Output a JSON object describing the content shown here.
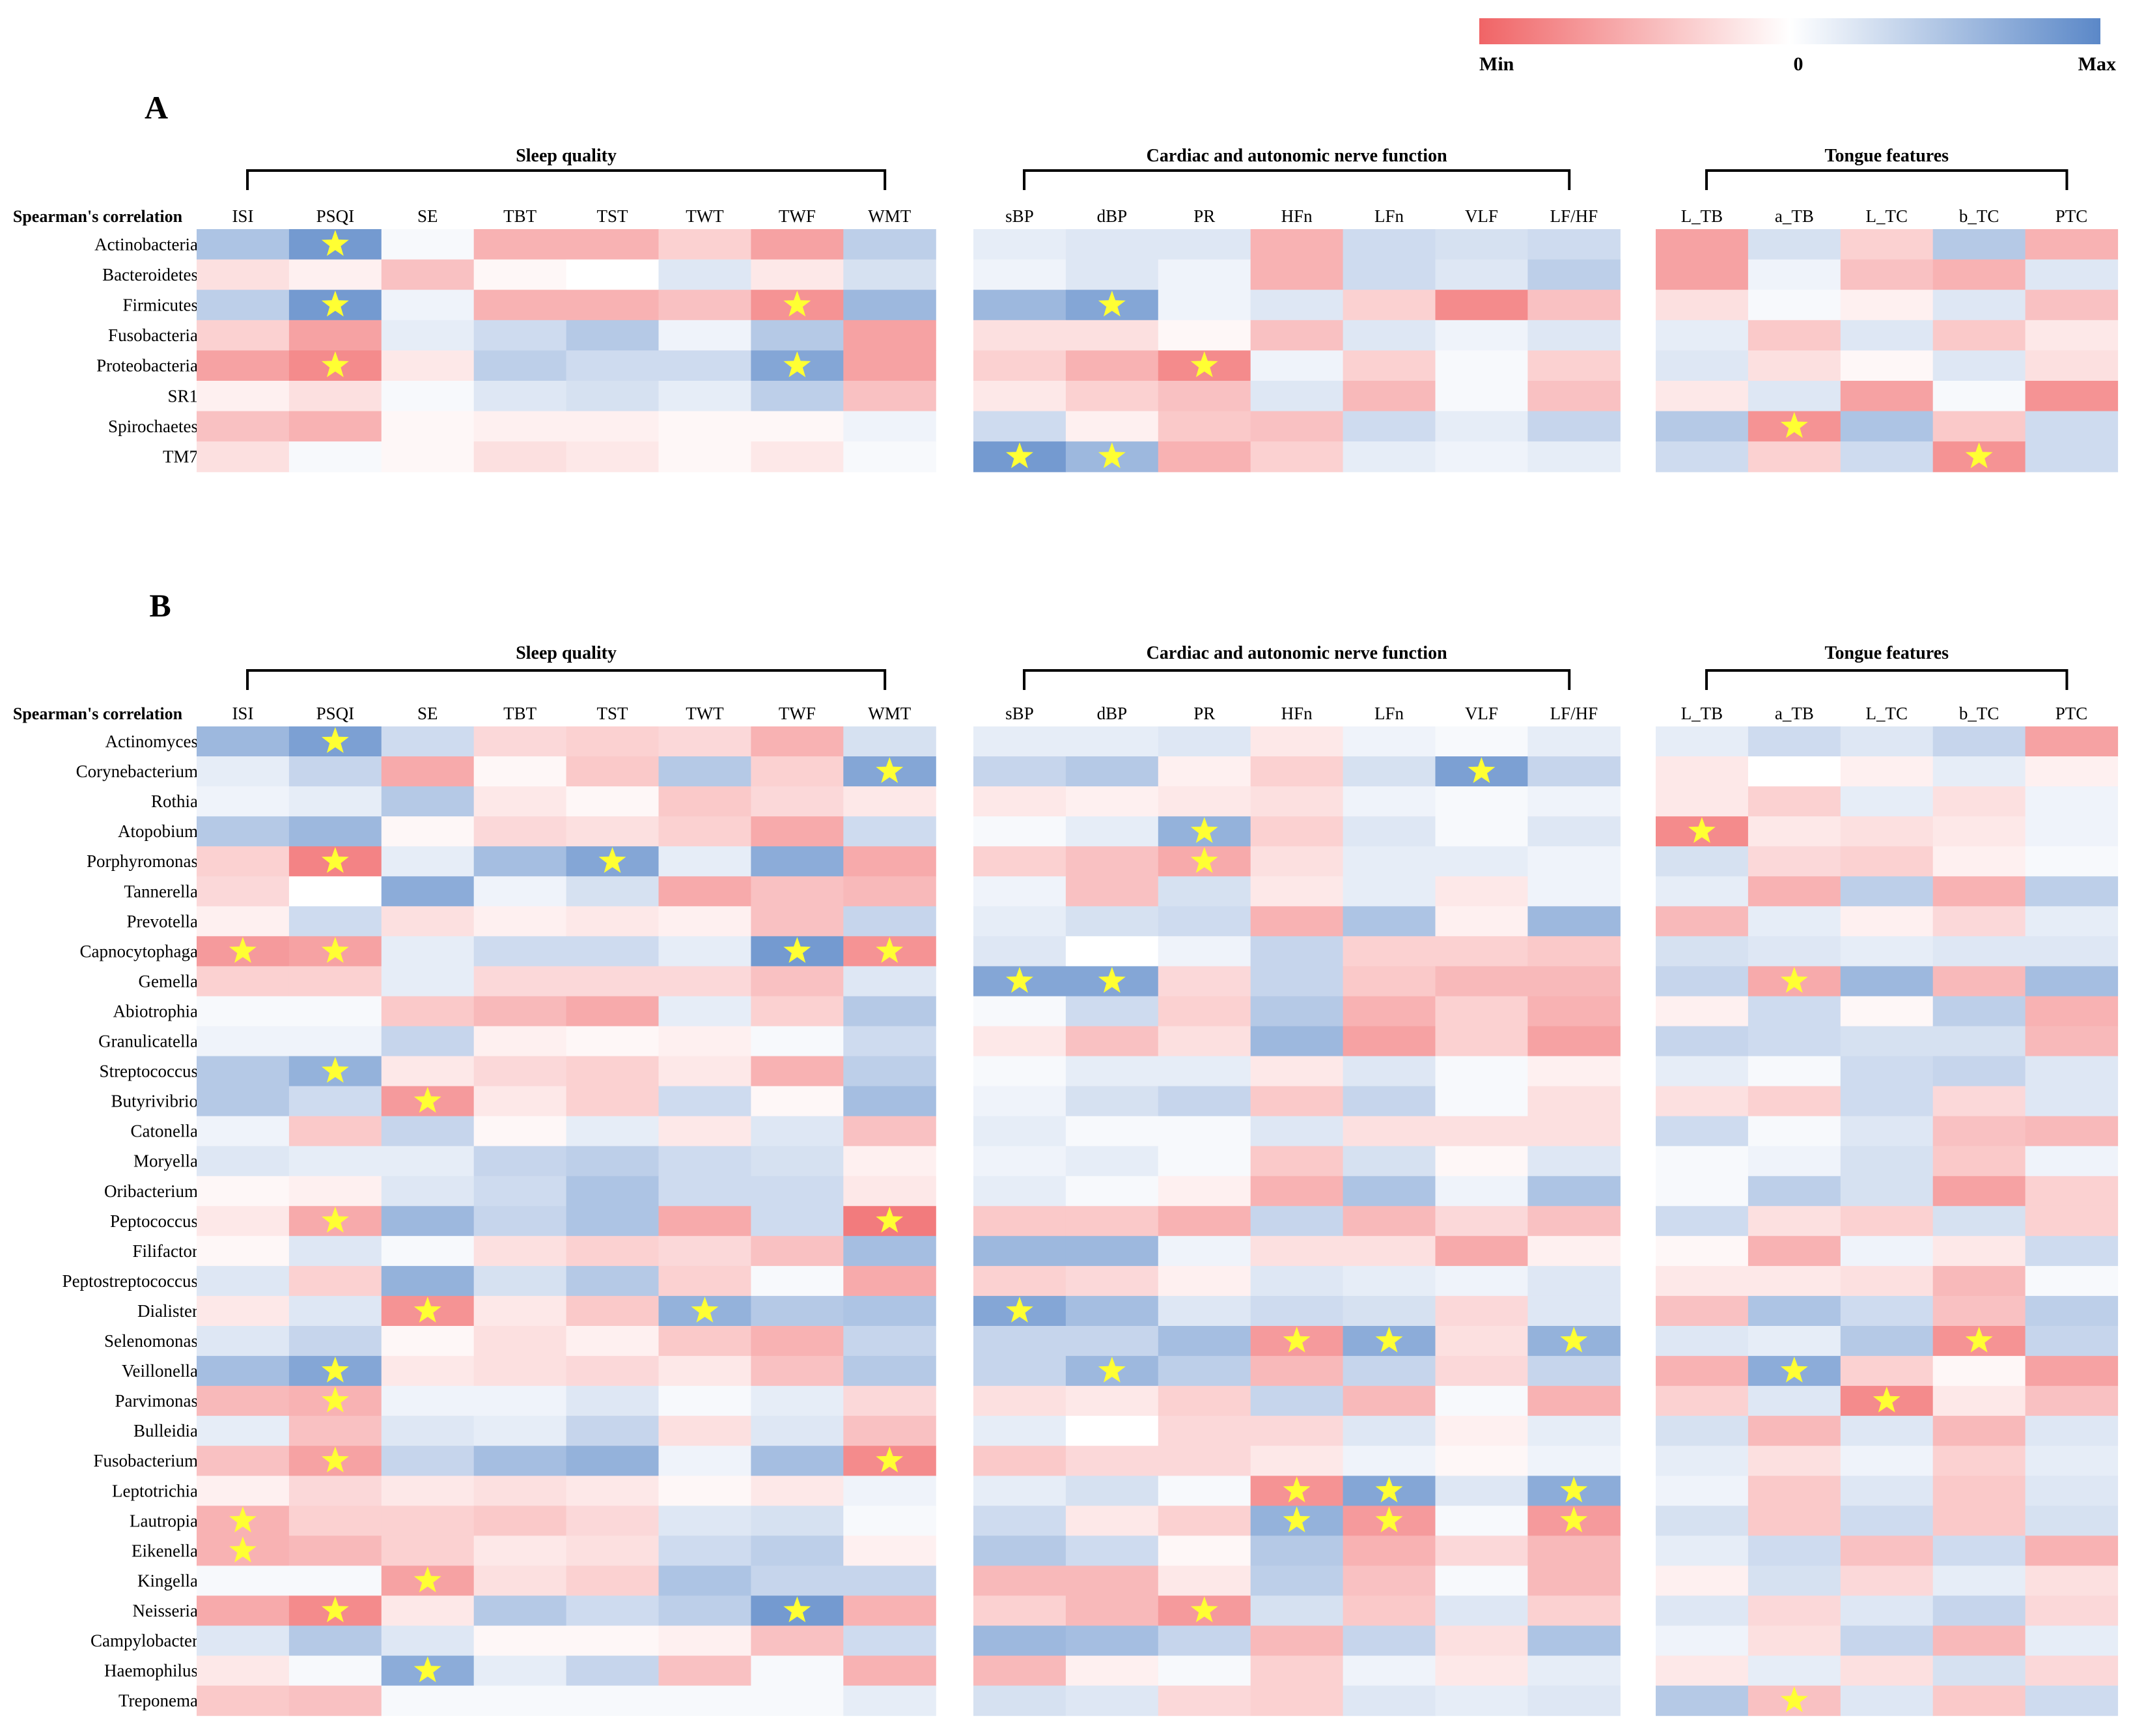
{
  "colors": {
    "min": "#f06466",
    "zero": "#ffffff",
    "max": "#5b88c8",
    "star": "#ffff33",
    "bracket": "#000000"
  },
  "legend": {
    "min_label": "Min",
    "zero_label": "0",
    "max_label": "Max"
  },
  "chart_data": [
    {
      "type": "heatmap",
      "panel_label": "A",
      "row_header": "Spearman's correlation",
      "value_scale": "relative, -1 = Min (red), 0 = white, 1 = Max (blue)",
      "groups": [
        {
          "name": "Sleep quality",
          "columns": [
            "ISI",
            "PSQI",
            "SE",
            "TBT",
            "TST",
            "TWT",
            "TWF",
            "WMT"
          ]
        },
        {
          "name": "Cardiac and autonomic nerve function",
          "columns": [
            "sBP",
            "dBP",
            "PR",
            "HFn",
            "LFn",
            "VLF",
            "LF/HF"
          ]
        },
        {
          "name": "Tongue features",
          "columns": [
            "L_TB",
            "a_TB",
            "L_TC",
            "b_TC",
            "PTC"
          ]
        }
      ],
      "rows": [
        "Actinobacteria",
        "Bacteroidetes",
        "Firmicutes",
        "Fusobacteria",
        "Proteobacteria",
        "SR1",
        "Spirochaetes",
        "TM7"
      ],
      "values": [
        [
          0.5,
          0.85,
          0.05,
          -0.5,
          -0.5,
          -0.3,
          -0.6,
          0.4,
          0.15,
          0.2,
          0.2,
          -0.5,
          0.3,
          0.25,
          0.3,
          -0.6,
          0.25,
          -0.3,
          0.45,
          -0.5
        ],
        [
          -0.2,
          -0.1,
          -0.4,
          -0.05,
          0.0,
          0.2,
          -0.15,
          0.25,
          0.1,
          0.2,
          0.1,
          -0.5,
          0.3,
          0.2,
          0.4,
          -0.6,
          0.1,
          -0.4,
          -0.5,
          0.2
        ],
        [
          0.4,
          0.85,
          0.1,
          -0.5,
          -0.5,
          -0.4,
          -0.7,
          0.6,
          0.6,
          0.75,
          0.1,
          0.2,
          -0.3,
          -0.75,
          -0.4,
          -0.2,
          0.05,
          -0.1,
          0.2,
          -0.4
        ],
        [
          -0.3,
          -0.6,
          0.15,
          0.3,
          0.45,
          0.1,
          0.45,
          -0.6,
          -0.2,
          -0.2,
          -0.05,
          -0.4,
          0.2,
          0.1,
          0.2,
          0.15,
          -0.35,
          0.2,
          -0.35,
          -0.15
        ],
        [
          -0.6,
          -0.75,
          -0.15,
          0.4,
          0.3,
          0.3,
          0.75,
          -0.6,
          -0.3,
          -0.5,
          -0.75,
          0.1,
          -0.3,
          0.05,
          -0.3,
          0.2,
          -0.2,
          -0.05,
          0.2,
          -0.2
        ],
        [
          -0.1,
          -0.2,
          0.05,
          0.2,
          0.25,
          0.15,
          0.4,
          -0.4,
          -0.15,
          -0.3,
          -0.4,
          0.2,
          -0.45,
          0.05,
          -0.4,
          -0.15,
          0.2,
          -0.6,
          0.05,
          -0.7
        ],
        [
          -0.4,
          -0.5,
          -0.05,
          -0.1,
          -0.1,
          -0.05,
          -0.05,
          0.1,
          0.3,
          -0.1,
          -0.35,
          -0.4,
          0.3,
          0.15,
          0.35,
          0.45,
          -0.7,
          0.5,
          -0.35,
          0.3
        ],
        [
          -0.2,
          0.05,
          -0.05,
          -0.2,
          -0.15,
          -0.05,
          -0.15,
          0.05,
          0.85,
          0.6,
          -0.5,
          -0.3,
          0.15,
          0.1,
          0.15,
          0.3,
          -0.3,
          0.3,
          -0.7,
          0.3
        ]
      ],
      "significant": [
        [
          0,
          1
        ],
        [
          2,
          1
        ],
        [
          2,
          6
        ],
        [
          4,
          1
        ],
        [
          4,
          6
        ],
        [
          2,
          9
        ],
        [
          4,
          10
        ],
        [
          7,
          8
        ],
        [
          7,
          9
        ],
        [
          6,
          16
        ],
        [
          7,
          18
        ]
      ]
    },
    {
      "type": "heatmap",
      "panel_label": "B",
      "row_header": "Spearman's correlation",
      "value_scale": "relative, -1 = Min (red), 0 = white, 1 = Max (blue)",
      "groups": [
        {
          "name": "Sleep quality",
          "columns": [
            "ISI",
            "PSQI",
            "SE",
            "TBT",
            "TST",
            "TWT",
            "TWF",
            "WMT"
          ]
        },
        {
          "name": "Cardiac and autonomic nerve function",
          "columns": [
            "sBP",
            "dBP",
            "PR",
            "HFn",
            "LFn",
            "VLF",
            "LF/HF"
          ]
        },
        {
          "name": "Tongue features",
          "columns": [
            "L_TB",
            "a_TB",
            "L_TC",
            "b_TC",
            "PTC"
          ]
        }
      ],
      "rows": [
        "Actinomyces",
        "Corynebacterium",
        "Rothia",
        "Atopobium",
        "Porphyromonas",
        "Tannerella",
        "Prevotella",
        "Capnocytophaga",
        "Gemella",
        "Abiotrophia",
        "Granulicatella",
        "Streptococcus",
        "Butyrivibrio",
        "Catonella",
        "Moryella",
        "Oribacterium",
        "Peptococcus",
        "Filifactor",
        "Peptostreptococcus",
        "Dialister",
        "Selenomonas",
        "Veillonella",
        "Parvimonas",
        "Bulleidia",
        "Fusobacterium",
        "Leptotrichia",
        "Lautropia",
        "Eikenella",
        "Kingella",
        "Neisseria",
        "Campylobacter",
        "Haemophilus",
        "Treponema"
      ],
      "values": [
        [
          0.6,
          0.8,
          0.3,
          -0.25,
          -0.3,
          -0.25,
          -0.5,
          0.25,
          0.15,
          0.15,
          0.2,
          -0.15,
          0.1,
          0.05,
          0.15,
          0.15,
          0.3,
          0.2,
          0.35,
          -0.6
        ],
        [
          0.15,
          0.35,
          -0.55,
          -0.05,
          -0.35,
          0.45,
          -0.3,
          0.75,
          0.35,
          0.45,
          -0.1,
          -0.3,
          0.25,
          0.8,
          0.35,
          -0.15,
          0.0,
          -0.1,
          0.15,
          -0.1
        ],
        [
          0.1,
          0.15,
          0.45,
          -0.15,
          -0.05,
          -0.35,
          -0.25,
          -0.15,
          -0.15,
          -0.1,
          -0.15,
          -0.2,
          0.1,
          0.05,
          0.1,
          -0.15,
          -0.3,
          0.15,
          -0.2,
          0.1
        ],
        [
          0.45,
          0.6,
          -0.05,
          -0.25,
          -0.2,
          -0.3,
          -0.55,
          0.3,
          0.05,
          0.15,
          0.65,
          -0.3,
          0.2,
          0.05,
          0.2,
          -0.75,
          -0.15,
          -0.2,
          -0.15,
          0.1
        ],
        [
          -0.3,
          -0.8,
          0.15,
          0.55,
          0.75,
          0.15,
          0.7,
          -0.55,
          -0.3,
          -0.4,
          -0.55,
          -0.2,
          0.15,
          0.15,
          0.1,
          0.25,
          -0.25,
          -0.3,
          -0.1,
          0.05
        ],
        [
          -0.25,
          0.0,
          0.7,
          0.1,
          0.25,
          -0.55,
          -0.4,
          -0.45,
          0.1,
          -0.4,
          0.25,
          -0.15,
          0.15,
          -0.15,
          0.1,
          0.15,
          -0.5,
          0.4,
          -0.5,
          0.4
        ],
        [
          -0.1,
          0.3,
          -0.2,
          -0.1,
          -0.15,
          -0.1,
          -0.4,
          0.35,
          0.15,
          0.25,
          0.3,
          -0.5,
          0.5,
          -0.1,
          0.6,
          -0.45,
          0.15,
          -0.1,
          -0.25,
          0.15
        ],
        [
          -0.65,
          -0.6,
          0.15,
          0.3,
          0.3,
          0.15,
          0.85,
          -0.7,
          0.2,
          0.0,
          0.1,
          0.35,
          -0.3,
          -0.3,
          -0.35,
          0.25,
          0.2,
          0.15,
          0.2,
          0.2
        ],
        [
          -0.3,
          -0.3,
          0.15,
          -0.25,
          -0.25,
          -0.25,
          -0.4,
          0.2,
          0.75,
          0.75,
          -0.25,
          0.35,
          -0.35,
          -0.45,
          -0.45,
          0.35,
          -0.55,
          0.6,
          -0.45,
          0.55
        ],
        [
          0.05,
          0.05,
          -0.35,
          -0.45,
          -0.55,
          0.15,
          -0.3,
          0.45,
          0.05,
          0.3,
          -0.3,
          0.45,
          -0.5,
          -0.3,
          -0.5,
          -0.1,
          0.3,
          -0.05,
          0.4,
          -0.5
        ],
        [
          0.1,
          0.1,
          0.35,
          -0.1,
          -0.05,
          -0.1,
          0.05,
          0.3,
          -0.15,
          -0.4,
          -0.2,
          0.6,
          -0.6,
          -0.3,
          -0.6,
          0.35,
          0.3,
          0.25,
          0.25,
          -0.45
        ],
        [
          0.45,
          0.65,
          -0.15,
          -0.25,
          -0.3,
          -0.15,
          -0.5,
          0.4,
          0.05,
          0.15,
          0.15,
          -0.15,
          0.2,
          0.05,
          -0.1,
          0.15,
          0.05,
          0.3,
          0.35,
          0.2
        ],
        [
          0.45,
          0.3,
          -0.65,
          -0.15,
          -0.3,
          0.3,
          -0.05,
          0.55,
          0.1,
          0.25,
          0.35,
          -0.35,
          0.35,
          0.05,
          -0.2,
          -0.2,
          -0.3,
          0.3,
          -0.25,
          0.2
        ],
        [
          0.1,
          -0.35,
          0.35,
          -0.05,
          0.15,
          -0.15,
          0.2,
          -0.4,
          0.15,
          0.05,
          0.05,
          0.2,
          -0.2,
          -0.2,
          -0.2,
          0.3,
          0.05,
          0.2,
          -0.4,
          -0.45
        ],
        [
          0.2,
          0.15,
          0.15,
          0.35,
          0.4,
          0.3,
          0.25,
          -0.1,
          0.1,
          0.15,
          0.05,
          -0.35,
          0.25,
          -0.05,
          0.2,
          0.05,
          0.1,
          0.25,
          -0.35,
          0.1
        ],
        [
          -0.05,
          -0.1,
          0.2,
          0.3,
          0.5,
          0.3,
          0.3,
          -0.15,
          0.15,
          0.05,
          -0.1,
          -0.5,
          0.5,
          0.1,
          0.5,
          0.05,
          0.4,
          0.25,
          -0.6,
          -0.3
        ],
        [
          -0.15,
          -0.55,
          0.6,
          0.35,
          0.5,
          -0.55,
          0.3,
          -0.85,
          -0.35,
          -0.35,
          -0.5,
          0.35,
          -0.45,
          -0.25,
          -0.4,
          0.3,
          -0.2,
          -0.3,
          0.25,
          -0.3
        ],
        [
          -0.05,
          0.2,
          0.05,
          -0.2,
          -0.3,
          -0.25,
          -0.4,
          0.55,
          0.6,
          0.6,
          0.1,
          -0.2,
          -0.2,
          -0.55,
          -0.1,
          -0.05,
          -0.5,
          0.1,
          -0.15,
          0.3
        ],
        [
          0.2,
          -0.3,
          0.65,
          0.25,
          0.45,
          -0.3,
          0.05,
          -0.55,
          -0.3,
          -0.25,
          -0.1,
          0.2,
          0.15,
          0.1,
          0.2,
          -0.15,
          -0.15,
          -0.2,
          -0.45,
          0.05
        ],
        [
          -0.15,
          0.2,
          -0.7,
          -0.15,
          -0.35,
          0.65,
          0.45,
          0.5,
          0.75,
          0.55,
          0.2,
          0.3,
          0.25,
          -0.25,
          0.2,
          -0.4,
          0.5,
          0.3,
          -0.4,
          0.4
        ],
        [
          0.2,
          0.35,
          -0.05,
          -0.2,
          -0.1,
          -0.35,
          -0.5,
          0.35,
          0.35,
          0.35,
          0.55,
          -0.65,
          0.7,
          -0.2,
          0.65,
          0.2,
          0.15,
          0.45,
          -0.7,
          0.35
        ],
        [
          0.55,
          0.75,
          -0.15,
          -0.2,
          -0.25,
          -0.15,
          -0.4,
          0.45,
          0.35,
          0.6,
          0.4,
          -0.45,
          0.35,
          -0.25,
          0.35,
          -0.5,
          0.7,
          -0.3,
          -0.05,
          -0.6
        ],
        [
          -0.45,
          -0.5,
          0.1,
          0.1,
          0.2,
          0.05,
          0.15,
          -0.25,
          -0.2,
          -0.15,
          -0.3,
          0.35,
          -0.45,
          0.05,
          -0.5,
          -0.3,
          0.2,
          -0.75,
          -0.15,
          -0.4
        ],
        [
          0.15,
          -0.4,
          0.2,
          0.15,
          0.35,
          -0.2,
          0.2,
          -0.4,
          0.15,
          0.0,
          -0.25,
          -0.25,
          0.2,
          -0.1,
          0.15,
          0.25,
          -0.45,
          0.2,
          -0.45,
          0.2
        ],
        [
          -0.4,
          -0.6,
          0.35,
          0.55,
          0.65,
          0.1,
          0.55,
          -0.75,
          -0.35,
          -0.25,
          -0.25,
          -0.15,
          0.1,
          -0.05,
          0.1,
          0.15,
          -0.2,
          0.1,
          -0.3,
          0.15
        ],
        [
          -0.1,
          -0.25,
          -0.15,
          -0.2,
          -0.15,
          -0.05,
          -0.15,
          0.1,
          0.15,
          0.25,
          0.05,
          -0.7,
          0.75,
          0.2,
          0.7,
          0.1,
          -0.35,
          0.2,
          -0.35,
          0.2
        ],
        [
          -0.5,
          -0.3,
          -0.3,
          -0.35,
          -0.25,
          0.2,
          0.25,
          0.05,
          0.3,
          -0.15,
          -0.3,
          0.65,
          -0.65,
          0.05,
          -0.65,
          0.25,
          -0.35,
          0.3,
          -0.35,
          0.25
        ],
        [
          -0.5,
          -0.45,
          -0.3,
          -0.15,
          -0.2,
          0.3,
          0.4,
          -0.1,
          0.45,
          0.3,
          -0.05,
          0.45,
          -0.5,
          -0.25,
          -0.45,
          0.15,
          0.3,
          -0.4,
          0.3,
          -0.5
        ],
        [
          0.05,
          0.05,
          -0.6,
          -0.2,
          -0.3,
          0.5,
          0.35,
          0.35,
          -0.45,
          -0.45,
          -0.15,
          0.4,
          -0.4,
          0.05,
          -0.45,
          -0.1,
          0.25,
          -0.25,
          0.15,
          -0.2
        ],
        [
          -0.55,
          -0.75,
          -0.15,
          0.45,
          0.3,
          0.4,
          0.85,
          -0.5,
          -0.3,
          -0.45,
          -0.65,
          0.25,
          -0.35,
          0.2,
          -0.3,
          0.2,
          -0.25,
          0.2,
          0.35,
          -0.25
        ],
        [
          0.2,
          0.45,
          0.2,
          -0.05,
          -0.05,
          -0.1,
          -0.4,
          0.3,
          0.6,
          0.55,
          0.35,
          -0.45,
          0.35,
          -0.2,
          0.5,
          0.1,
          -0.2,
          0.35,
          -0.45,
          0.15
        ],
        [
          -0.15,
          0.05,
          0.7,
          0.15,
          0.35,
          -0.4,
          0.05,
          -0.5,
          -0.45,
          -0.1,
          0.05,
          -0.3,
          0.1,
          -0.15,
          0.15,
          -0.15,
          0.15,
          -0.2,
          0.25,
          -0.25
        ],
        [
          -0.35,
          -0.4,
          0.05,
          0.05,
          0.05,
          0.05,
          0.05,
          0.15,
          0.25,
          0.2,
          -0.25,
          -0.3,
          0.2,
          0.15,
          0.2,
          0.45,
          -0.4,
          0.2,
          -0.35,
          0.3
        ]
      ],
      "significant": [
        [
          0,
          1
        ],
        [
          1,
          7
        ],
        [
          4,
          1
        ],
        [
          4,
          4
        ],
        [
          7,
          0
        ],
        [
          7,
          1
        ],
        [
          7,
          6
        ],
        [
          7,
          7
        ],
        [
          11,
          1
        ],
        [
          12,
          2
        ],
        [
          16,
          1
        ],
        [
          16,
          7
        ],
        [
          19,
          2
        ],
        [
          19,
          5
        ],
        [
          21,
          1
        ],
        [
          22,
          1
        ],
        [
          24,
          1
        ],
        [
          24,
          7
        ],
        [
          26,
          0
        ],
        [
          27,
          0
        ],
        [
          28,
          2
        ],
        [
          29,
          1
        ],
        [
          29,
          6
        ],
        [
          31,
          2
        ],
        [
          1,
          13
        ],
        [
          3,
          10
        ],
        [
          4,
          10
        ],
        [
          8,
          8
        ],
        [
          8,
          9
        ],
        [
          19,
          8
        ],
        [
          20,
          11
        ],
        [
          20,
          12
        ],
        [
          20,
          14
        ],
        [
          21,
          9
        ],
        [
          25,
          11
        ],
        [
          25,
          12
        ],
        [
          25,
          14
        ],
        [
          26,
          11
        ],
        [
          26,
          12
        ],
        [
          26,
          14
        ],
        [
          29,
          10
        ],
        [
          3,
          15
        ],
        [
          8,
          16
        ],
        [
          20,
          18
        ],
        [
          21,
          16
        ],
        [
          22,
          17
        ],
        [
          32,
          16
        ]
      ]
    }
  ]
}
